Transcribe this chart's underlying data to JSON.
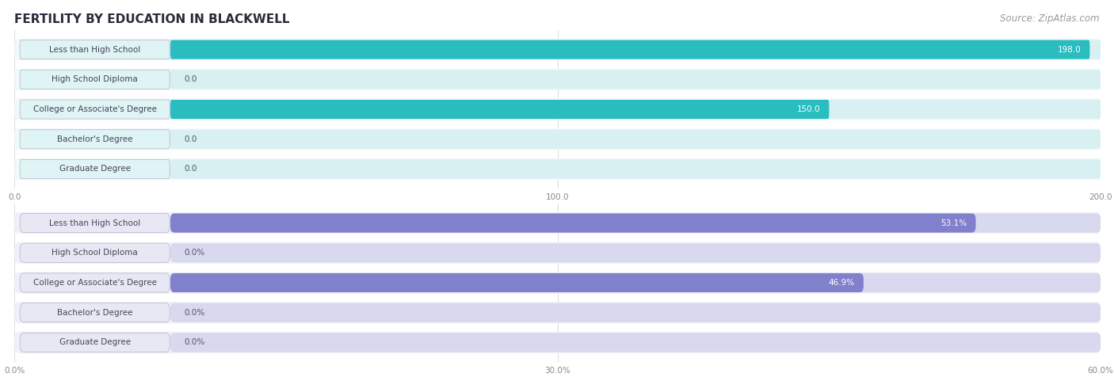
{
  "title": "FERTILITY BY EDUCATION IN BLACKWELL",
  "source": "Source: ZipAtlas.com",
  "top_chart": {
    "categories": [
      "Less than High School",
      "High School Diploma",
      "College or Associate's Degree",
      "Bachelor's Degree",
      "Graduate Degree"
    ],
    "values": [
      198.0,
      0.0,
      150.0,
      0.0,
      0.0
    ],
    "bar_color": "#29bdc0",
    "label_bg_color": "#dff4f5",
    "label_text_color": "#444455",
    "value_color_inside": "#ffffff",
    "value_color_outside": "#555566",
    "xlim": [
      0,
      200.0
    ],
    "xticks": [
      0.0,
      100.0,
      200.0
    ],
    "bg_color": "#f8f8f8",
    "bar_bg_color": "#d8f0f2",
    "row_bg_color": "#f0f9fa"
  },
  "bottom_chart": {
    "categories": [
      "Less than High School",
      "High School Diploma",
      "College or Associate's Degree",
      "Bachelor's Degree",
      "Graduate Degree"
    ],
    "values": [
      53.1,
      0.0,
      46.9,
      0.0,
      0.0
    ],
    "bar_color": "#8080cc",
    "label_bg_color": "#e8e8f5",
    "label_text_color": "#444455",
    "value_color_inside": "#ffffff",
    "value_color_outside": "#555566",
    "xlim": [
      0,
      60.0
    ],
    "xticks": [
      0.0,
      30.0,
      60.0
    ],
    "xtick_labels": [
      "0.0%",
      "30.0%",
      "60.0%"
    ],
    "bg_color": "#f8f8f8",
    "bar_bg_color": "#d8d8ee",
    "row_bg_color": "#f0f0f8"
  },
  "background_color": "#ffffff",
  "title_color": "#2a2a3a",
  "source_color": "#999999",
  "title_fontsize": 11,
  "source_fontsize": 8.5,
  "label_fontsize": 7.5,
  "value_fontsize": 7.5
}
